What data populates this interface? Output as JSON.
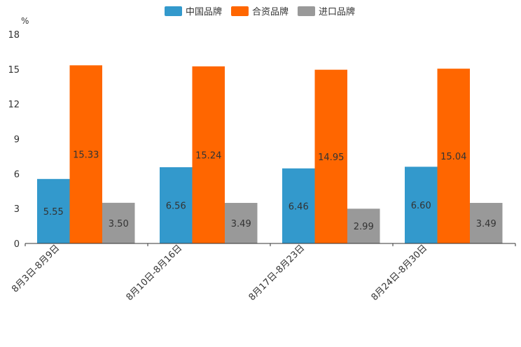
{
  "chart_data": {
    "type": "bar",
    "unit": "%",
    "ylim": [
      0,
      18
    ],
    "yticks": [
      0,
      3,
      6,
      9,
      12,
      15,
      18
    ],
    "categories": [
      "8月3日-8月9日",
      "8月10日-8月16日",
      "8月17日-8月23日",
      "8月24日-8月30日"
    ],
    "series": [
      {
        "name": "中国品牌",
        "color": "#3399cc",
        "values": [
          5.55,
          6.56,
          6.46,
          6.6
        ],
        "labels": [
          "5.55",
          "6.56",
          "6.46",
          "6.60"
        ]
      },
      {
        "name": "合资品牌",
        "color": "#ff6600",
        "values": [
          15.33,
          15.24,
          14.95,
          15.04
        ],
        "labels": [
          "15.33",
          "15.24",
          "14.95",
          "15.04"
        ]
      },
      {
        "name": "进口品牌",
        "color": "#999999",
        "values": [
          3.5,
          3.49,
          2.99,
          3.49
        ],
        "labels": [
          "3.50",
          "3.49",
          "2.99",
          "3.49"
        ]
      }
    ],
    "legend_position": "top-center",
    "grid": false
  }
}
